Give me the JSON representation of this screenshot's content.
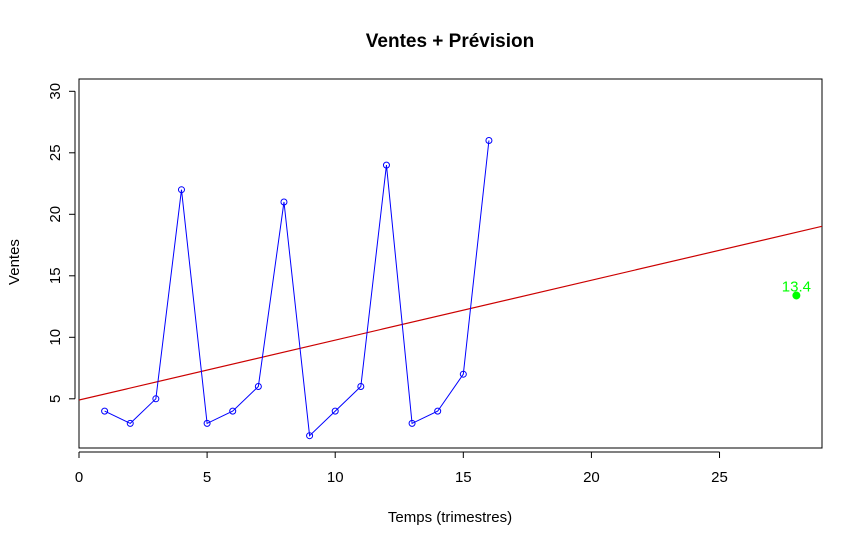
{
  "chart_data": {
    "type": "line",
    "title": "Ventes + Prévision",
    "xlabel": "Temps (trimestres)",
    "ylabel": "Ventes",
    "xlim": [
      0,
      29
    ],
    "ylim": [
      1,
      31
    ],
    "xticks": [
      0,
      5,
      10,
      15,
      20,
      25
    ],
    "yticks": [
      5,
      10,
      15,
      20,
      25,
      30
    ],
    "grid": false,
    "series": [
      {
        "color": "#0000ff",
        "marker": "open-circle",
        "x": [
          1,
          2,
          3,
          4,
          5,
          6,
          7,
          8,
          9,
          10,
          11,
          12,
          13,
          14,
          15,
          16
        ],
        "y": [
          4,
          3,
          5,
          22,
          3,
          4,
          6,
          21,
          2,
          4,
          6,
          24,
          3,
          4,
          7,
          26
        ]
      }
    ],
    "trend_line": {
      "color": "#cc0000",
      "intercept": 4.9,
      "slope": 0.487
    },
    "forecast_point": {
      "x": 28,
      "y": 13.4,
      "label": "13.4",
      "color": "#00ff00"
    }
  }
}
